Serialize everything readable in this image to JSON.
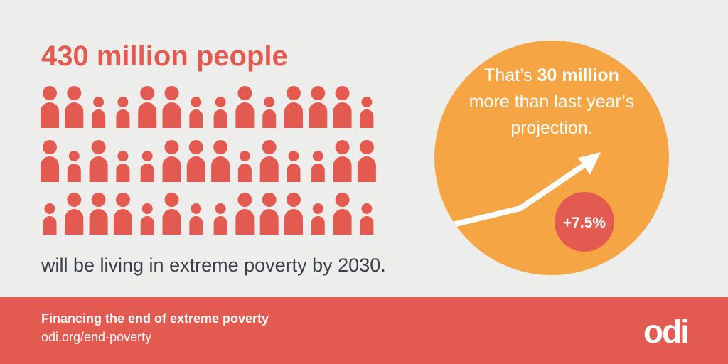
{
  "headline": "430 million people",
  "subline": "will be living in extreme poverty by 2030.",
  "callout": {
    "line1_start": "That’s ",
    "line1_bold": "30 million",
    "line2": "more than last year’s",
    "line3": "projection."
  },
  "badge": "+7.5%",
  "footer": {
    "title": "Financing the end of extreme poverty",
    "url": "odi.org/end-poverty",
    "logo": "odi"
  }
}
